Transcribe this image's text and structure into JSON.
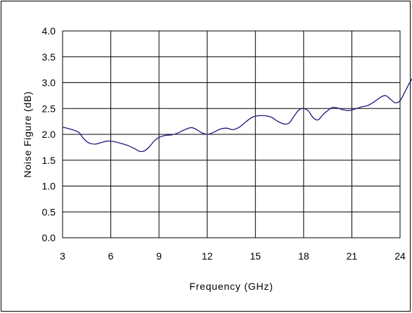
{
  "chart_data": {
    "type": "line",
    "title": "",
    "xlabel": "Frequency (GHz)",
    "ylabel": "Noise Figure (dB)",
    "xlim": [
      3,
      24
    ],
    "ylim": [
      0,
      4
    ],
    "x_ticks": [
      "3",
      "6",
      "9",
      "12",
      "15",
      "18",
      "21",
      "24"
    ],
    "y_ticks": [
      "0.0",
      "0.5",
      "1.0",
      "1.5",
      "2.0",
      "2.5",
      "3.0",
      "3.5",
      "4.0"
    ],
    "grid": true,
    "legend": "none",
    "line_color": "#1a1a7a",
    "series": [
      {
        "x": [
          3.0,
          3.5,
          4.0,
          4.3,
          4.6,
          5.0,
          5.4,
          5.8,
          6.2,
          6.7,
          7.1,
          7.5,
          7.8,
          8.1,
          8.4,
          8.7,
          9.0,
          9.4,
          9.8,
          10.2,
          10.6,
          11.0,
          11.3,
          11.6,
          12.0,
          12.4,
          12.8,
          13.2,
          13.6,
          14.0,
          14.4,
          14.8,
          15.2,
          15.6,
          16.0,
          16.4,
          16.8,
          17.1,
          17.4,
          17.7,
          18.0,
          18.3,
          18.6,
          18.9,
          19.2,
          19.5,
          19.8,
          20.1,
          20.4,
          20.8,
          21.2,
          21.6,
          22.0,
          22.4,
          22.8,
          23.1,
          23.4,
          23.7,
          24.0,
          24.3,
          24.6,
          24.9
        ],
        "y": [
          2.14,
          2.1,
          2.04,
          1.92,
          1.84,
          1.81,
          1.84,
          1.87,
          1.86,
          1.82,
          1.78,
          1.72,
          1.67,
          1.68,
          1.76,
          1.87,
          1.94,
          1.98,
          1.99,
          2.03,
          2.09,
          2.13,
          2.1,
          2.04,
          2.0,
          2.04,
          2.1,
          2.12,
          2.09,
          2.14,
          2.24,
          2.33,
          2.36,
          2.36,
          2.33,
          2.25,
          2.2,
          2.22,
          2.35,
          2.47,
          2.5,
          2.45,
          2.32,
          2.28,
          2.38,
          2.46,
          2.52,
          2.51,
          2.48,
          2.46,
          2.49,
          2.53,
          2.56,
          2.63,
          2.72,
          2.75,
          2.68,
          2.61,
          2.65,
          2.82,
          3.0,
          3.15
        ]
      }
    ]
  }
}
